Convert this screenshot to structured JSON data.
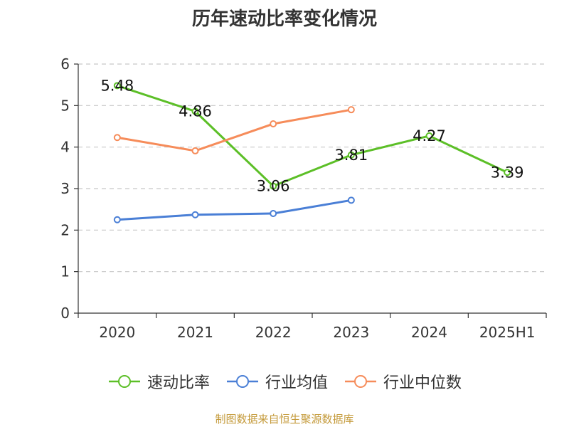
{
  "chart_data": {
    "type": "line",
    "title": "历年速动比率变化情况",
    "categories": [
      "2020",
      "2021",
      "2022",
      "2023",
      "2024",
      "2025H1"
    ],
    "ylim": [
      0,
      6
    ],
    "yticks": [
      "0",
      "1",
      "2",
      "3",
      "4",
      "5",
      "6"
    ],
    "grid": true,
    "legend_position": "bottom",
    "series": [
      {
        "name": "速动比率",
        "color": "#5cbf27",
        "values": [
          5.48,
          4.86,
          3.06,
          3.81,
          4.27,
          3.39
        ],
        "labels": [
          "5.48",
          "4.86",
          "3.06",
          "3.81",
          "4.27",
          "3.39"
        ]
      },
      {
        "name": "行业均值",
        "color": "#4a7fd6",
        "values": [
          2.25,
          2.37,
          2.4,
          2.72,
          null,
          null
        ]
      },
      {
        "name": "行业中位数",
        "color": "#f68c5a",
        "values": [
          4.23,
          3.91,
          4.56,
          4.9,
          null,
          null
        ]
      }
    ]
  },
  "footer": {
    "source": "制图数据来自恒生聚源数据库",
    "source_color": "#c49a3a"
  }
}
